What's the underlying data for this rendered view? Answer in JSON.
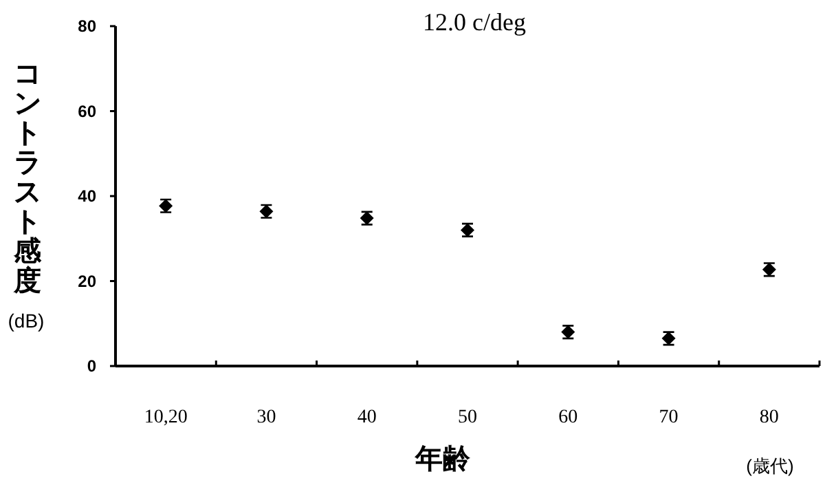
{
  "chart_data": {
    "type": "scatter",
    "title": "12.0 c/deg",
    "xlabel": "年齢",
    "ylabel": "コントラスト感度 (dB)",
    "annotations": [
      "(歳代)"
    ],
    "categories": [
      "10,20",
      "30",
      "40",
      "50",
      "60",
      "70",
      "80"
    ],
    "series": [
      {
        "color": "#000000",
        "values": [
          37.7,
          36.4,
          34.8,
          32.0,
          8.0,
          6.5,
          22.7
        ],
        "errors": [
          1.5,
          1.5,
          1.5,
          1.5,
          1.5,
          1.5,
          1.5
        ]
      }
    ],
    "ylim": [
      0,
      80
    ],
    "yticks": [
      0,
      20,
      40,
      60,
      80
    ],
    "marker": "diamond",
    "grid": false
  }
}
